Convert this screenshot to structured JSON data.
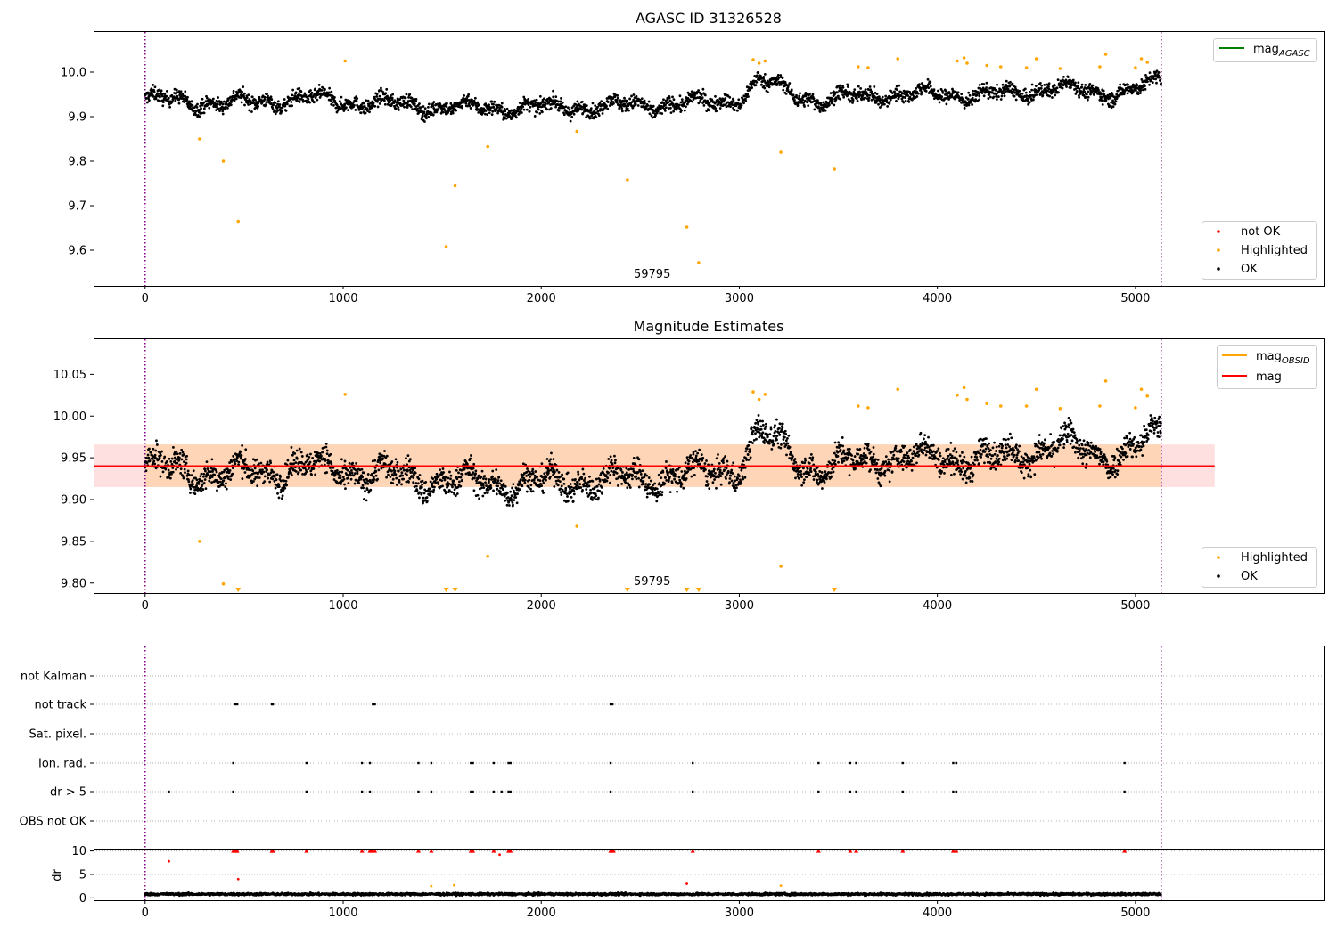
{
  "chart_data": [
    {
      "type": "scatter",
      "title": "AGASC ID 31326528",
      "xlim": [
        -260,
        5950
      ],
      "ylim": [
        9.52,
        10.09
      ],
      "x_ticks": [
        0,
        1000,
        2000,
        3000,
        4000,
        5000
      ],
      "y_ticks": [
        9.6,
        9.7,
        9.8,
        9.9,
        10.0
      ],
      "y_tick_labels": [
        "9.6",
        "9.7",
        "9.8",
        "9.9",
        "10.0"
      ],
      "vlines": [
        0,
        5130
      ],
      "annotation": "59795",
      "annotation_x": 2560,
      "legend_line": {
        "label_main": "mag",
        "label_sub": "AGASC",
        "color": "#008000"
      },
      "legend_points": [
        {
          "label": "not OK",
          "color": "#ff0000"
        },
        {
          "label": "Highlighted",
          "color": "#ffa500"
        },
        {
          "label": "OK",
          "color": "#000000"
        }
      ],
      "series": [
        {
          "name": "OK",
          "color": "#000000",
          "x_range": [
            0,
            5130
          ],
          "trend_x": [
            0,
            400,
            800,
            1200,
            1600,
            2000,
            2400,
            2800,
            3000,
            3100,
            3400,
            3700,
            4000,
            4400,
            4600,
            4800,
            5130
          ],
          "trend_y": [
            9.94,
            9.93,
            9.94,
            9.93,
            9.92,
            9.92,
            9.925,
            9.93,
            9.94,
            9.98,
            9.935,
            9.95,
            9.95,
            9.95,
            9.97,
            9.95,
            9.975
          ],
          "spread": 0.035
        },
        {
          "name": "Highlighted",
          "color": "#ffa500",
          "points": [
            [
              275,
              9.85
            ],
            [
              395,
              9.8
            ],
            [
              470,
              9.665
            ],
            [
              1010,
              10.025
            ],
            [
              1520,
              9.608
            ],
            [
              1565,
              9.745
            ],
            [
              1730,
              9.833
            ],
            [
              2180,
              9.867
            ],
            [
              2435,
              9.758
            ],
            [
              2735,
              9.652
            ],
            [
              2795,
              9.572
            ],
            [
              3070,
              10.028
            ],
            [
              3100,
              10.02
            ],
            [
              3130,
              10.025
            ],
            [
              3210,
              9.82
            ],
            [
              3480,
              9.782
            ],
            [
              3600,
              10.012
            ],
            [
              3650,
              10.01
            ],
            [
              3800,
              10.03
            ],
            [
              4100,
              10.025
            ],
            [
              4135,
              10.032
            ],
            [
              4150,
              10.02
            ],
            [
              4250,
              10.015
            ],
            [
              4320,
              10.012
            ],
            [
              4450,
              10.01
            ],
            [
              4500,
              10.03
            ],
            [
              4620,
              10.008
            ],
            [
              4820,
              10.012
            ],
            [
              4850,
              10.04
            ],
            [
              5000,
              10.01
            ],
            [
              5030,
              10.03
            ],
            [
              5060,
              10.022
            ]
          ]
        }
      ]
    },
    {
      "type": "scatter",
      "title": "Magnitude Estimates",
      "xlim": [
        -260,
        5950
      ],
      "ylim": [
        9.788,
        10.092
      ],
      "x_ticks": [
        0,
        1000,
        2000,
        3000,
        4000,
        5000
      ],
      "y_ticks": [
        9.8,
        9.85,
        9.9,
        9.95,
        10.0,
        10.05
      ],
      "y_tick_labels": [
        "9.80",
        "9.85",
        "9.90",
        "9.95",
        "10.00",
        "10.05"
      ],
      "vlines": [
        0,
        5130
      ],
      "annotation": "59795",
      "annotation_x": 2560,
      "mag_line": 9.94,
      "mag_band": [
        9.915,
        9.966
      ],
      "band_x": [
        -260,
        5400
      ],
      "legend_lines": [
        {
          "label_main": "mag",
          "label_sub": "OBSID",
          "color": "#ffa500"
        },
        {
          "label_main": "mag",
          "label_sub": "",
          "color": "#ff0000"
        }
      ],
      "legend_points": [
        {
          "label": "Highlighted",
          "color": "#ffa500"
        },
        {
          "label": "OK",
          "color": "#000000"
        }
      ],
      "lower_clipped_x": [
        470,
        1520,
        1565,
        2435,
        2735,
        2795,
        3480
      ],
      "series": [
        {
          "name": "OK",
          "color": "#000000",
          "x_range": [
            0,
            5130
          ],
          "trend_x": [
            0,
            400,
            800,
            1200,
            1600,
            2000,
            2400,
            2800,
            3000,
            3100,
            3400,
            3700,
            4000,
            4400,
            4600,
            4800,
            5130
          ],
          "trend_y": [
            9.94,
            9.93,
            9.94,
            9.93,
            9.92,
            9.92,
            9.925,
            9.93,
            9.94,
            9.98,
            9.935,
            9.95,
            9.95,
            9.95,
            9.97,
            9.95,
            9.975
          ],
          "spread": 0.035
        },
        {
          "name": "Highlighted",
          "color": "#ffa500",
          "points": [
            [
              275,
              9.85
            ],
            [
              395,
              9.799
            ],
            [
              1010,
              10.026
            ],
            [
              1730,
              9.832
            ],
            [
              2180,
              9.868
            ],
            [
              3070,
              10.029
            ],
            [
              3100,
              10.02
            ],
            [
              3130,
              10.026
            ],
            [
              3210,
              9.82
            ],
            [
              3600,
              10.012
            ],
            [
              3650,
              10.01
            ],
            [
              3800,
              10.032
            ],
            [
              4100,
              10.025
            ],
            [
              4135,
              10.034
            ],
            [
              4150,
              10.02
            ],
            [
              4250,
              10.015
            ],
            [
              4320,
              10.012
            ],
            [
              4450,
              10.012
            ],
            [
              4500,
              10.032
            ],
            [
              4620,
              10.009
            ],
            [
              4820,
              10.012
            ],
            [
              4850,
              10.042
            ],
            [
              5000,
              10.01
            ],
            [
              5030,
              10.032
            ],
            [
              5060,
              10.024
            ]
          ]
        }
      ]
    },
    {
      "type": "scatter",
      "title": "",
      "xlim": [
        -260,
        5950
      ],
      "categories": [
        "not Kalman",
        "not track",
        "Sat. pixel.",
        "Ion. rad.",
        "dr > 5",
        "OBS not OK"
      ],
      "vlines": [
        0,
        5130
      ],
      "flags": {
        "not track": [
          455,
          465,
          640,
          645,
          1150,
          1160,
          2350,
          2360
        ],
        "Ion. rad.": [
          445,
          815,
          1095,
          1135,
          1380,
          1445,
          1645,
          1655,
          1760,
          1835,
          1845,
          2350,
          2765,
          3400,
          3560,
          3590,
          3825,
          4080,
          4095,
          4945
        ],
        "dr > 5": [
          120,
          445,
          815,
          1095,
          1135,
          1380,
          1445,
          1645,
          1655,
          1760,
          1800,
          1835,
          1845,
          2350,
          2765,
          3400,
          3560,
          3590,
          3825,
          4080,
          4095,
          4945
        ]
      }
    },
    {
      "type": "scatter",
      "title": "",
      "ylabel": "dr",
      "xlim": [
        -260,
        5950
      ],
      "ylim": [
        -0.5,
        10.3
      ],
      "x_ticks": [
        0,
        1000,
        2000,
        3000,
        4000,
        5000
      ],
      "y_ticks": [
        0,
        5,
        10
      ],
      "vlines": [
        0,
        5130
      ],
      "series": [
        {
          "name": "OK",
          "color": "#000000",
          "x_range": [
            0,
            5130
          ],
          "y_mean": 0.8,
          "spread": 0.4
        },
        {
          "name": "not OK",
          "color": "#ff0000",
          "points": [
            [
              120,
              7.8
            ],
            [
              445,
              10
            ],
            [
              455,
              10
            ],
            [
              465,
              10
            ],
            [
              470,
              4
            ],
            [
              640,
              10
            ],
            [
              645,
              10
            ],
            [
              815,
              10
            ],
            [
              1095,
              10
            ],
            [
              1135,
              10
            ],
            [
              1145,
              10
            ],
            [
              1160,
              10
            ],
            [
              1380,
              10
            ],
            [
              1445,
              10
            ],
            [
              1645,
              10
            ],
            [
              1655,
              10
            ],
            [
              1760,
              10
            ],
            [
              1790,
              9.2
            ],
            [
              1835,
              10
            ],
            [
              1845,
              10
            ],
            [
              2350,
              10
            ],
            [
              2355,
              10
            ],
            [
              2365,
              10
            ],
            [
              2735,
              3
            ],
            [
              2765,
              10
            ],
            [
              3400,
              10
            ],
            [
              3560,
              10
            ],
            [
              3590,
              10
            ],
            [
              3825,
              10
            ],
            [
              4080,
              10
            ],
            [
              4095,
              10
            ],
            [
              4945,
              10
            ]
          ]
        },
        {
          "name": "Highlighted",
          "color": "#ffa500",
          "points": [
            [
              1445,
              2.5
            ],
            [
              1560,
              2.7
            ],
            [
              3210,
              2.6
            ]
          ]
        }
      ]
    }
  ]
}
